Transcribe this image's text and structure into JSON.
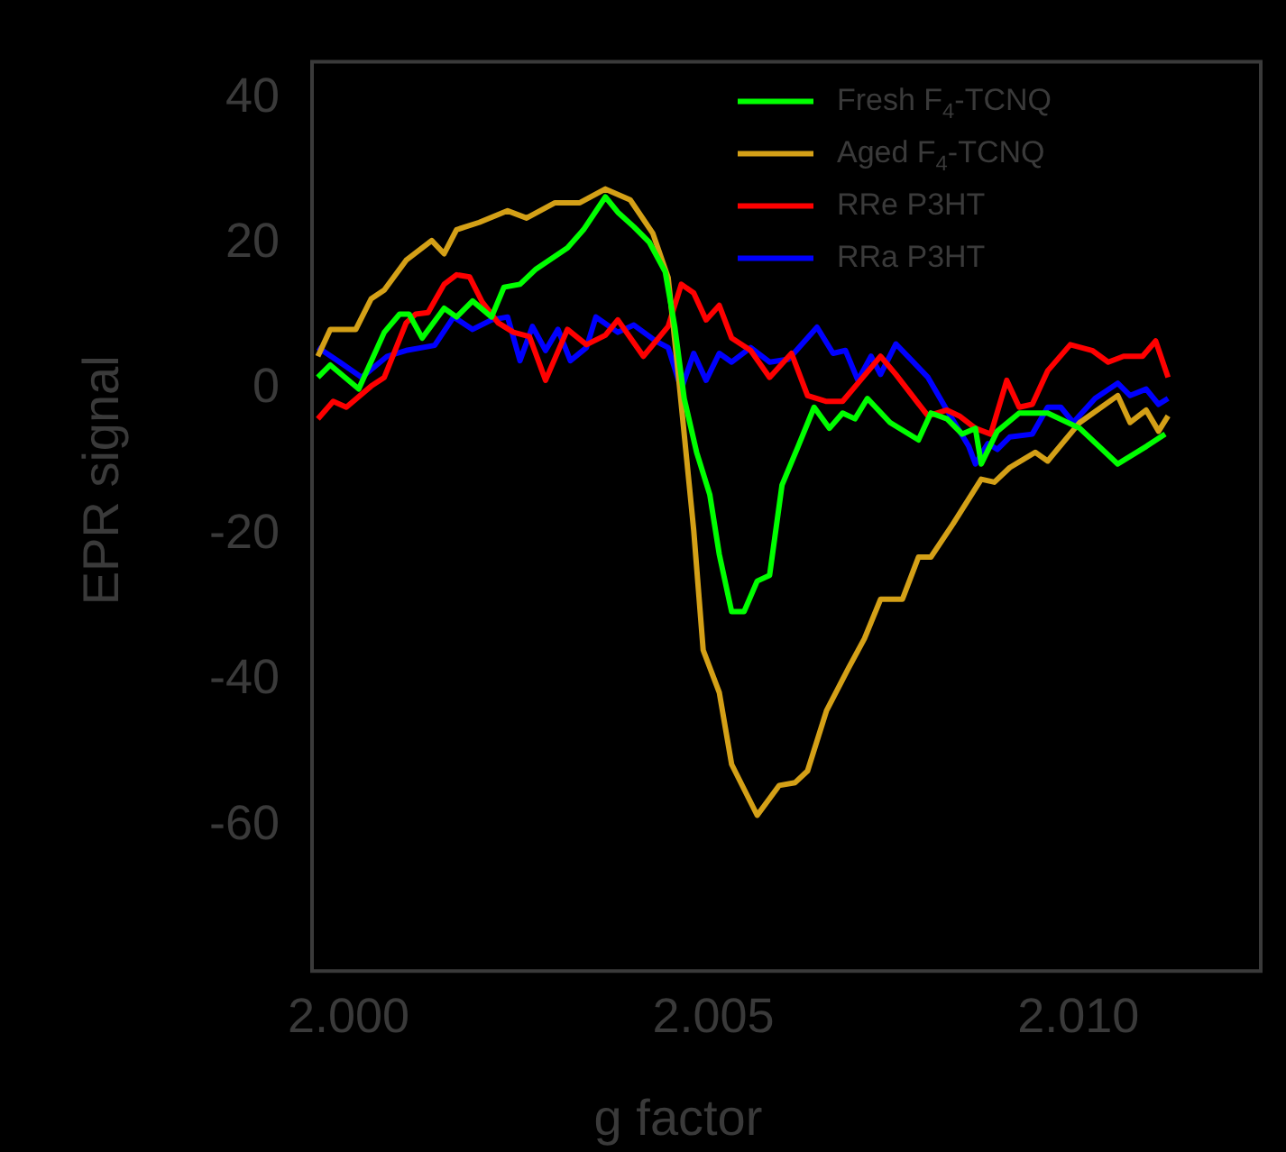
{
  "chart_data": {
    "type": "line",
    "xlabel": "g factor",
    "ylabel": "EPR signal",
    "xlim": [
      1.9995,
      2.0125
    ],
    "ylim": [
      -80,
      45
    ],
    "xticks": [
      {
        "value": 2,
        "label": "2.000"
      },
      {
        "value": 2.005,
        "label": "2.005"
      },
      {
        "value": 2.01,
        "label": "2.010"
      }
    ],
    "yticks": [
      -60,
      -40,
      -20,
      0,
      20,
      40
    ],
    "legend": "top right",
    "grid": false,
    "marker": "none",
    "line_style": "solid",
    "series": [
      {
        "name": "Fresh F$_{4}$-TCNQ",
        "color": "#00ff00",
        "x": [
          1.99958,
          1.99975,
          2.00014,
          2.00049,
          2.0007,
          2.00083,
          2.00101,
          2.00131,
          2.00148,
          2.0017,
          2.00196,
          2.00213,
          2.00235,
          2.00257,
          2.003,
          2.00322,
          2.00352,
          2.00369,
          2.00391,
          2.00412,
          2.00434,
          2.00447,
          2.0046,
          2.00477,
          2.00495,
          2.00508,
          2.00525,
          2.00542,
          2.0056,
          2.00577,
          2.00594,
          2.00616,
          2.00638,
          2.00659,
          2.00677,
          2.00694,
          2.00711,
          2.00742,
          2.00781,
          2.00798,
          2.0082,
          2.00841,
          2.00859,
          2.00867,
          2.00889,
          2.00919,
          2.00958,
          2.01002,
          2.01054,
          2.01093,
          2.01119
        ],
        "values": [
          1.6,
          3.3,
          0,
          7.8,
          10.3,
          10.3,
          7.0,
          11.1,
          9.9,
          12.1,
          9.9,
          14.0,
          14.4,
          16.5,
          19.4,
          21.9,
          26.4,
          24.3,
          22.3,
          20.2,
          16.1,
          8.6,
          -1.3,
          -8.7,
          -14.5,
          -22.7,
          -30.6,
          -30.6,
          -26.4,
          -25.6,
          -13.2,
          -7.9,
          -2.5,
          -5.4,
          -3.3,
          -4.1,
          -1.3,
          -4.6,
          -7.0,
          -3.3,
          -4.1,
          -6.2,
          -5.4,
          -10.3,
          -5.8,
          -3.3,
          -3.3,
          -5.4,
          -10.3,
          -7.9,
          -6.2
        ]
      },
      {
        "name": "Aged F$_{4}$-TCNQ",
        "color": "#d4a017",
        "x": [
          1.99958,
          1.99975,
          2.0001,
          2.00031,
          2.00049,
          2.00079,
          2.00114,
          2.00131,
          2.00148,
          2.00179,
          2.00218,
          2.00244,
          2.00283,
          2.00317,
          2.00352,
          2.00386,
          2.00417,
          2.00438,
          2.00451,
          2.00473,
          2.00486,
          2.00508,
          2.00525,
          2.0056,
          2.0059,
          2.00612,
          2.00629,
          2.00655,
          2.00685,
          2.00707,
          2.00729,
          2.00759,
          2.00781,
          2.00798,
          2.00828,
          2.00867,
          2.00885,
          2.00906,
          2.00941,
          2.00958,
          2.01002,
          2.01054,
          2.01071,
          2.01093,
          2.0111,
          2.01123
        ],
        "values": [
          4.5,
          8.2,
          8.2,
          12.4,
          13.6,
          17.7,
          20.4,
          18.6,
          21.9,
          22.9,
          24.5,
          23.5,
          25.6,
          25.6,
          27.5,
          26.0,
          21.4,
          15.3,
          2.9,
          -19.4,
          -35.9,
          -41.7,
          -51.6,
          -58.6,
          -54.5,
          -54.1,
          -52.5,
          -44.2,
          -38.4,
          -34.3,
          -28.9,
          -28.9,
          -23.1,
          -23.1,
          -18.6,
          -12.4,
          -12.8,
          -10.8,
          -8.7,
          -9.9,
          -4.6,
          -0.9,
          -4.6,
          -2.9,
          -5.8,
          -3.7
        ]
      },
      {
        "name": "RRe P3HT",
        "color": "#ff0000",
        "x": [
          1.99958,
          1.99979,
          1.99997,
          2.00031,
          2.00049,
          2.00079,
          2.00092,
          2.00109,
          2.00131,
          2.00148,
          2.00166,
          2.00183,
          2.00205,
          2.00226,
          2.00248,
          2.0027,
          2.003,
          2.00326,
          2.00352,
          2.00369,
          2.00404,
          2.00438,
          2.00456,
          2.00473,
          2.0049,
          2.00508,
          2.00525,
          2.00551,
          2.00577,
          2.00607,
          2.00629,
          2.00655,
          2.00677,
          2.00698,
          2.00729,
          2.0075,
          2.00794,
          2.0082,
          2.00837,
          2.00859,
          2.0088,
          2.00902,
          2.00919,
          2.00937,
          2.00958,
          2.00989,
          2.01019,
          2.01041,
          2.01062,
          2.01088,
          2.01106,
          2.01123
        ],
        "values": [
          -4.1,
          -1.7,
          -2.5,
          0.4,
          1.6,
          9.1,
          10.3,
          10.5,
          14.4,
          15.7,
          15.4,
          12.0,
          9.1,
          7.8,
          7.2,
          1.2,
          8.2,
          6.1,
          7.4,
          9.5,
          4.5,
          8.6,
          14.4,
          13.2,
          9.5,
          11.5,
          7.0,
          5.3,
          1.6,
          4.9,
          -0.9,
          -1.7,
          -1.7,
          0.8,
          4.5,
          2.0,
          -3.7,
          -2.9,
          -3.7,
          -5.4,
          -6.2,
          1.2,
          -2.5,
          -2.1,
          2.5,
          6.1,
          5.3,
          3.7,
          4.5,
          4.5,
          6.6,
          1.6
        ]
      },
      {
        "name": "RRa P3HT",
        "color": "#0000ff",
        "x": [
          1.99958,
          1.99988,
          2.00018,
          2.00053,
          2.00079,
          2.00118,
          2.00144,
          2.0017,
          2.00196,
          2.00218,
          2.00235,
          2.00252,
          2.0027,
          2.00287,
          2.00304,
          2.00326,
          2.00339,
          2.00369,
          2.00391,
          2.00421,
          2.00438,
          2.00456,
          2.00473,
          2.0049,
          2.00508,
          2.00525,
          2.00551,
          2.00577,
          2.00603,
          2.00642,
          2.00664,
          2.00681,
          2.00698,
          2.00716,
          2.00729,
          2.0075,
          2.00794,
          2.0082,
          2.0085,
          2.00859,
          2.00876,
          2.00889,
          2.00906,
          2.00937,
          2.00958,
          2.00976,
          2.00993,
          2.01023,
          2.01054,
          2.01071,
          2.01093,
          2.0111,
          2.01123
        ],
        "values": [
          5.7,
          3.7,
          1.6,
          4.5,
          5.3,
          6.0,
          9.9,
          8.2,
          9.5,
          9.9,
          3.9,
          8.6,
          5.3,
          8.2,
          3.9,
          5.7,
          9.9,
          7.8,
          8.8,
          6.6,
          5.7,
          0,
          4.9,
          1.2,
          4.9,
          3.7,
          5.7,
          3.7,
          4.1,
          8.5,
          4.9,
          5.3,
          1.2,
          4.5,
          2.0,
          6.2,
          1.6,
          -2.9,
          -7.9,
          -10.3,
          -7.5,
          -8.3,
          -6.6,
          -6.2,
          -2.5,
          -2.5,
          -4.6,
          -1.3,
          0.8,
          -0.9,
          0,
          -2.1,
          -1.3
        ]
      }
    ]
  }
}
